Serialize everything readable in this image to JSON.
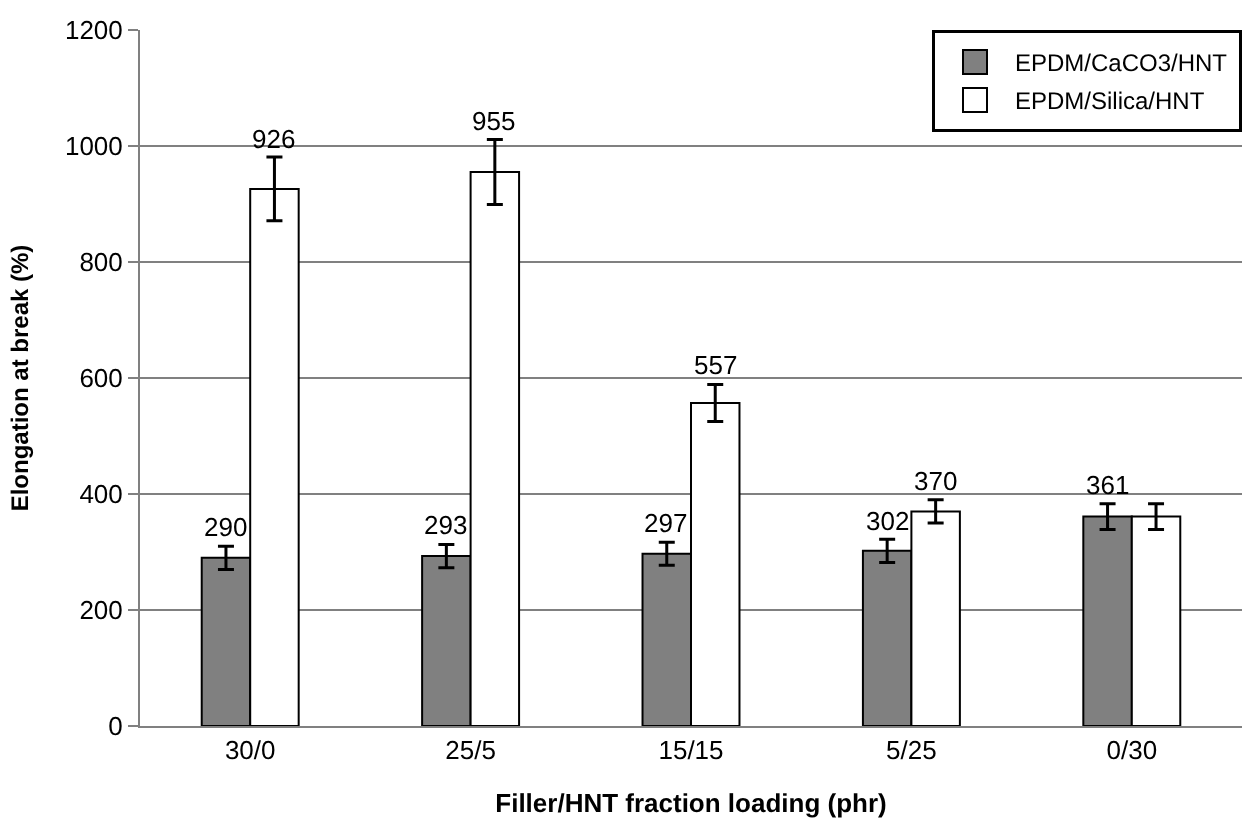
{
  "chart_data": {
    "type": "bar",
    "xlabel": "Filler/HNT fraction loading (phr)",
    "ylabel": "Elongation at break (%)",
    "categories": [
      "30/0",
      "25/5",
      "15/15",
      "5/25",
      "0/30"
    ],
    "series": [
      {
        "name": "EPDM/CaCO3/HNT",
        "color": "#808080",
        "values": [
          290,
          293,
          297,
          302,
          361
        ],
        "errors": [
          20,
          20,
          20,
          20,
          22
        ],
        "value_labels": [
          "290",
          "293",
          "297",
          "302",
          "361"
        ]
      },
      {
        "name": "EPDM/Silica/HNT",
        "color": "#ffffff",
        "values": [
          926,
          955,
          557,
          370,
          361
        ],
        "errors": [
          55,
          56,
          32,
          20,
          22
        ],
        "value_labels": [
          "926",
          "955",
          "557",
          "370",
          null
        ]
      }
    ],
    "ylim": [
      0,
      1200
    ],
    "yticks": [
      0,
      200,
      400,
      600,
      800,
      1000,
      1200
    ],
    "grid": "y",
    "legend": "top right"
  }
}
